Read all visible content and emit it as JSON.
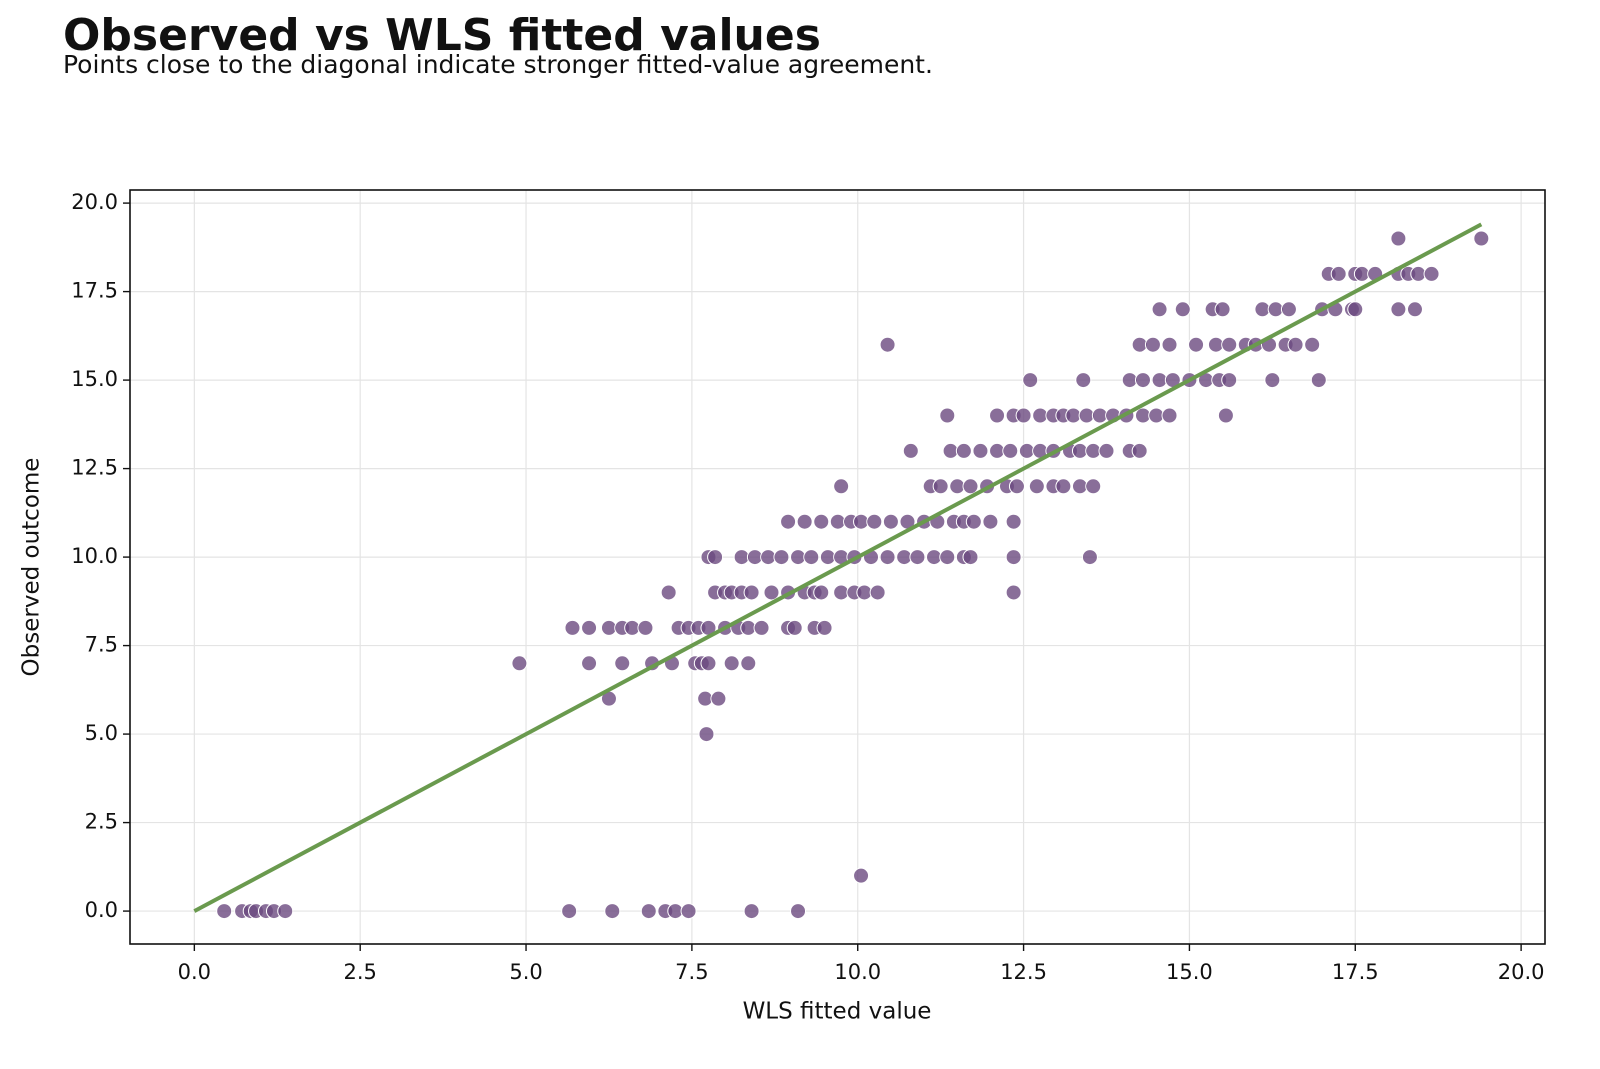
{
  "chart_data": {
    "type": "scatter",
    "title": "Observed vs WLS fitted values",
    "subtitle": "Points close to the diagonal indicate stronger fitted-value agreement.",
    "xlabel": "WLS fitted value",
    "ylabel": "Observed outcome",
    "xlim": [
      -0.97,
      20.36
    ],
    "ylim": [
      -0.93,
      20.37
    ],
    "xticks": [
      {
        "value": 0,
        "label": "0.0"
      },
      2.5,
      {
        "value": 5,
        "label": "5.0"
      },
      7.5,
      {
        "value": 10,
        "label": "10.0"
      },
      12.5,
      {
        "value": 15,
        "label": "15.0"
      },
      17.5,
      {
        "value": 20,
        "label": "20.0"
      }
    ],
    "yticks": [
      {
        "value": 0,
        "label": "0.0"
      },
      2.5,
      {
        "value": 5,
        "label": "5.0"
      },
      7.5,
      {
        "value": 10,
        "label": "10.0"
      },
      12.5,
      {
        "value": 15,
        "label": "15.0"
      },
      17.5,
      {
        "value": 20,
        "label": "20.0"
      }
    ],
    "grid": true,
    "series": [
      {
        "type": "scatter",
        "color": "#6b4a80",
        "x": [
          0.45,
          0.72,
          0.85,
          0.93,
          1.08,
          1.2,
          1.37,
          5.65,
          6.3,
          6.85,
          7.1,
          7.25,
          7.45,
          8.4,
          9.1,
          10.05,
          7.72,
          6.25,
          7.7,
          7.9,
          4.9,
          5.95,
          6.45,
          6.9,
          7.2,
          7.55,
          7.65,
          7.75,
          8.1,
          8.35,
          5.7,
          5.95,
          6.25,
          6.45,
          6.6,
          6.8,
          7.3,
          7.45,
          7.6,
          7.75,
          8.0,
          8.2,
          8.35,
          8.55,
          8.95,
          9.05,
          9.35,
          9.5,
          7.15,
          7.85,
          8.0,
          8.1,
          8.25,
          8.4,
          8.7,
          8.95,
          9.2,
          9.35,
          9.45,
          9.75,
          9.95,
          10.1,
          10.3,
          12.35,
          7.75,
          7.85,
          8.25,
          8.45,
          8.65,
          8.85,
          9.1,
          9.3,
          9.55,
          9.75,
          9.95,
          10.2,
          10.45,
          10.7,
          10.9,
          11.15,
          11.35,
          11.6,
          11.7,
          12.35,
          13.5,
          8.95,
          9.2,
          9.45,
          9.7,
          9.9,
          10.05,
          10.25,
          10.5,
          10.75,
          11.0,
          11.2,
          11.45,
          11.6,
          11.75,
          12.0,
          12.35,
          9.75,
          11.1,
          11.25,
          11.5,
          11.7,
          11.95,
          12.25,
          12.4,
          12.7,
          12.95,
          13.1,
          13.35,
          13.55,
          10.8,
          11.4,
          11.6,
          11.85,
          12.1,
          12.3,
          12.55,
          12.75,
          12.95,
          13.2,
          13.35,
          13.55,
          13.75,
          14.1,
          14.25,
          11.35,
          12.1,
          12.35,
          12.5,
          12.75,
          12.95,
          13.1,
          13.25,
          13.45,
          13.65,
          13.85,
          14.05,
          14.3,
          14.5,
          14.7,
          15.55,
          12.6,
          13.4,
          14.1,
          14.3,
          14.55,
          14.75,
          15.0,
          15.25,
          15.45,
          15.6,
          16.25,
          16.95,
          10.45,
          14.25,
          14.45,
          14.7,
          15.1,
          15.4,
          15.6,
          15.85,
          16.0,
          16.2,
          16.45,
          16.6,
          16.85,
          14.55,
          14.9,
          15.35,
          15.5,
          16.1,
          16.3,
          16.5,
          17.0,
          17.2,
          17.45,
          17.5,
          18.15,
          18.4,
          17.1,
          17.25,
          17.5,
          17.6,
          17.8,
          18.15,
          18.3,
          18.45,
          18.65,
          18.15,
          19.4
        ],
        "values": [
          0,
          0,
          0,
          0,
          0,
          0,
          0,
          0,
          0,
          0,
          0,
          0,
          0,
          0,
          0,
          1,
          5,
          6,
          6,
          6,
          7,
          7,
          7,
          7,
          7,
          7,
          7,
          7,
          7,
          7,
          8,
          8,
          8,
          8,
          8,
          8,
          8,
          8,
          8,
          8,
          8,
          8,
          8,
          8,
          8,
          8,
          8,
          8,
          9,
          9,
          9,
          9,
          9,
          9,
          9,
          9,
          9,
          9,
          9,
          9,
          9,
          9,
          9,
          9,
          10,
          10,
          10,
          10,
          10,
          10,
          10,
          10,
          10,
          10,
          10,
          10,
          10,
          10,
          10,
          10,
          10,
          10,
          10,
          10,
          10,
          11,
          11,
          11,
          11,
          11,
          11,
          11,
          11,
          11,
          11,
          11,
          11,
          11,
          11,
          11,
          11,
          12,
          12,
          12,
          12,
          12,
          12,
          12,
          12,
          12,
          12,
          12,
          12,
          12,
          13,
          13,
          13,
          13,
          13,
          13,
          13,
          13,
          13,
          13,
          13,
          13,
          13,
          13,
          13,
          14,
          14,
          14,
          14,
          14,
          14,
          14,
          14,
          14,
          14,
          14,
          14,
          14,
          14,
          14,
          14,
          15,
          15,
          15,
          15,
          15,
          15,
          15,
          15,
          15,
          15,
          15,
          15,
          16,
          16,
          16,
          16,
          16,
          16,
          16,
          16,
          16,
          16,
          16,
          16,
          16,
          17,
          17,
          17,
          17,
          17,
          17,
          17,
          17,
          17,
          17,
          17,
          17,
          17,
          18,
          18,
          18,
          18,
          18,
          18,
          18,
          18,
          18,
          19,
          19
        ]
      },
      {
        "type": "line",
        "color": "#6a9a4e",
        "x": [
          0,
          19.4
        ],
        "values": [
          0,
          19.4
        ]
      }
    ]
  }
}
